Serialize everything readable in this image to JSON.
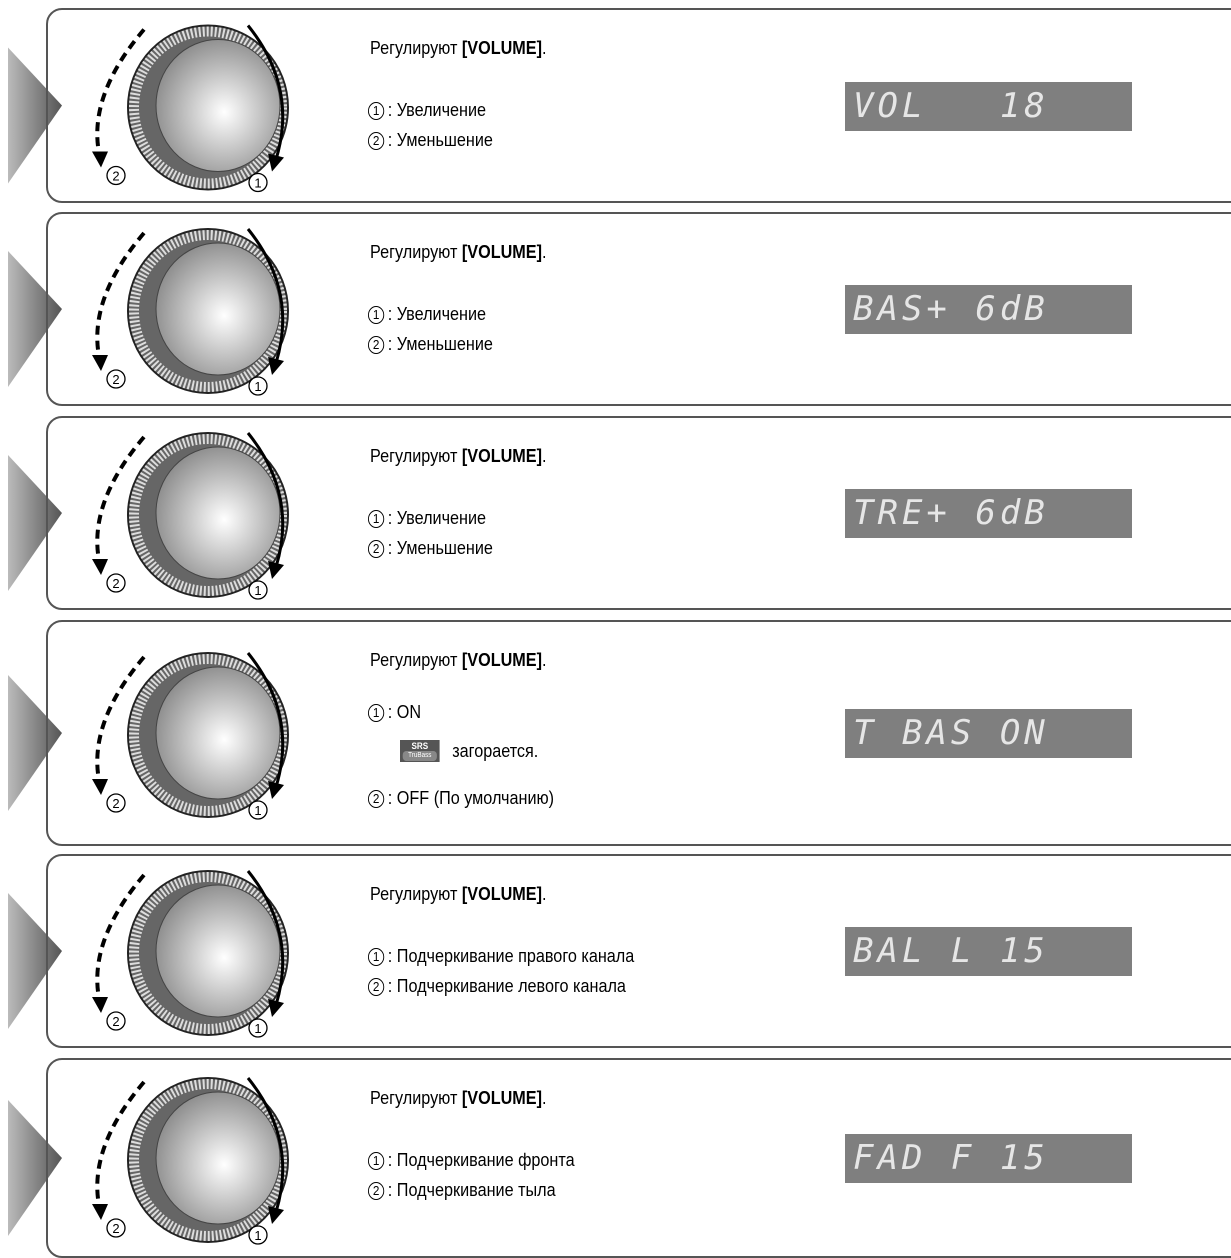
{
  "panels": [
    {
      "instruction": {
        "prefix": "Регулируют ",
        "key": "[VOLUME]",
        "suffix": "."
      },
      "dial": {
        "ccw": "2",
        "cw": "1"
      },
      "items": [
        {
          "num": "1",
          "text": ": Увеличение"
        },
        {
          "num": "2",
          "text": ": Уменьшение"
        }
      ],
      "display": "VOL   18"
    },
    {
      "instruction": {
        "prefix": "Регулируют ",
        "key": "[VOLUME]",
        "suffix": "."
      },
      "dial": {
        "ccw": "2",
        "cw": "1"
      },
      "items": [
        {
          "num": "1",
          "text": ": Увеличение"
        },
        {
          "num": "2",
          "text": ": Уменьшение"
        }
      ],
      "display": "BAS+ 6dB"
    },
    {
      "instruction": {
        "prefix": "Регулируют ",
        "key": "[VOLUME]",
        "suffix": "."
      },
      "dial": {
        "ccw": "2",
        "cw": "1"
      },
      "items": [
        {
          "num": "1",
          "text": ": Увеличение"
        },
        {
          "num": "2",
          "text": ": Уменьшение"
        }
      ],
      "display": "TRE+ 6dB"
    },
    {
      "instruction": {
        "prefix": "Регулируют ",
        "key": "[VOLUME]",
        "suffix": "."
      },
      "dial": {
        "ccw": "2",
        "cw": "1"
      },
      "items": [
        {
          "num": "1",
          "text": ": ON",
          "note": {
            "icon": {
              "brand": "SRS",
              "sub": "TruBass"
            },
            "text": "загорается."
          }
        },
        {
          "num": "2",
          "text": ": OFF (По умолчанию)"
        }
      ],
      "display": "T BAS ON"
    },
    {
      "instruction": {
        "prefix": "Регулируют ",
        "key": "[VOLUME]",
        "suffix": "."
      },
      "dial": {
        "ccw": "2",
        "cw": "1"
      },
      "items": [
        {
          "num": "1",
          "text": ": Подчеркивание правого канала"
        },
        {
          "num": "2",
          "text": ": Подчеркивание левого канала"
        }
      ],
      "display": "BAL L 15"
    },
    {
      "instruction": {
        "prefix": "Регулируют ",
        "key": "[VOLUME]",
        "suffix": "."
      },
      "dial": {
        "ccw": "2",
        "cw": "1"
      },
      "items": [
        {
          "num": "1",
          "text": ": Подчеркивание фронта"
        },
        {
          "num": "2",
          "text": ": Подчеркивание тыла"
        }
      ],
      "display": "FAD F 15"
    }
  ]
}
